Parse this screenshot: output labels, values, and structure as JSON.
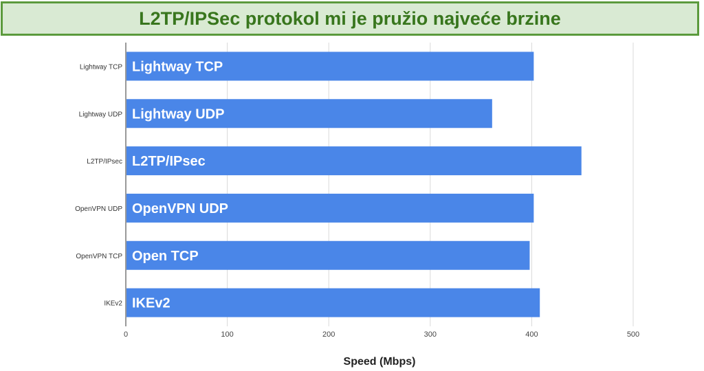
{
  "banner": {
    "title": "L2TP/IPSec protokol mi je pružio najveće brzine"
  },
  "chart_data": {
    "type": "bar",
    "orientation": "horizontal",
    "title": "L2TP/IPSec protokol mi je pružio najveće brzine",
    "xlabel": "Speed (Mbps)",
    "ylabel": "",
    "xlim": [
      0,
      500
    ],
    "xticks": [
      0,
      100,
      200,
      300,
      400,
      500
    ],
    "grid": true,
    "legend": "none",
    "categories": [
      "Lightway TCP",
      "Lightway UDP",
      "L2TP/IPsec",
      "OpenVPN UDP",
      "OpenVPN TCP",
      "IKEv2"
    ],
    "bar_labels": [
      "Lightway TCP",
      "Lightway UDP",
      "L2TP/IPsec",
      "OpenVPN UDP",
      "Open TCP",
      "IKEv2"
    ],
    "values": [
      402,
      361,
      449,
      402,
      398,
      408
    ],
    "bar_color": "#4a86e8"
  }
}
